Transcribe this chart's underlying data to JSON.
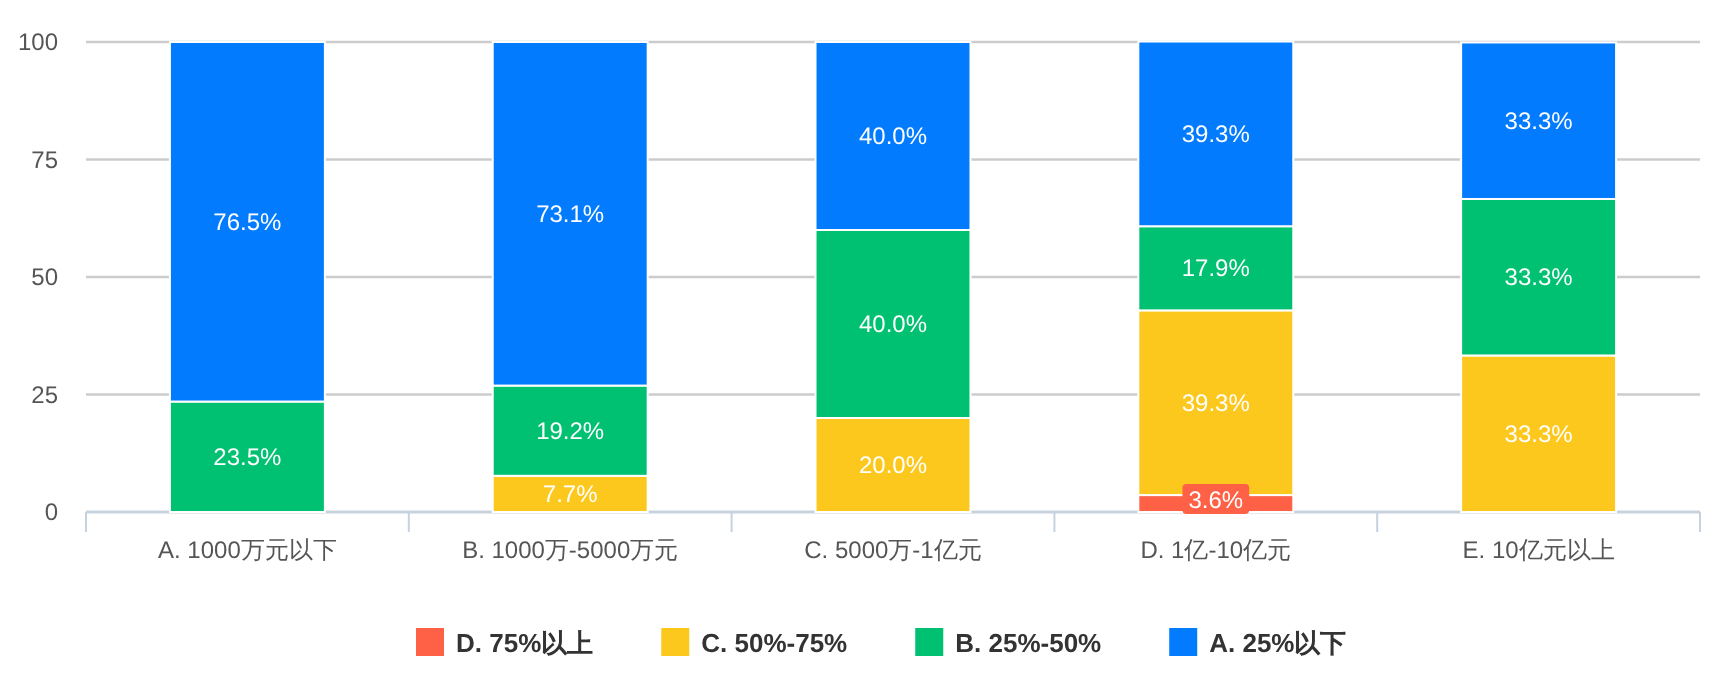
{
  "chart_data": {
    "type": "bar",
    "stacked": true,
    "categories": [
      "A. 1000万元以下",
      "B. 1000万-5000万元",
      "C. 5000万-1亿元",
      "D. 1亿-10亿元",
      "E. 10亿元以上"
    ],
    "series": [
      {
        "name": "D. 75%以上",
        "color": "#fe6146",
        "values": [
          0,
          0,
          0,
          3.6,
          0
        ],
        "value_labels": [
          null,
          null,
          null,
          "3.6%",
          null
        ]
      },
      {
        "name": "C. 50%-75%",
        "color": "#fdc81e",
        "values": [
          0,
          7.7,
          20.0,
          39.3,
          33.3
        ],
        "value_labels": [
          null,
          "7.7%",
          "20.0%",
          "39.3%",
          "33.3%"
        ]
      },
      {
        "name": "B. 25%-50%",
        "color": "#00c072",
        "values": [
          23.5,
          19.2,
          40.0,
          17.9,
          33.3
        ],
        "value_labels": [
          "23.5%",
          "19.2%",
          "40.0%",
          "17.9%",
          "33.3%"
        ]
      },
      {
        "name": "A. 25%以下",
        "color": "#037bff",
        "values": [
          76.5,
          73.1,
          40.0,
          39.3,
          33.3
        ],
        "value_labels": [
          "76.5%",
          "73.1%",
          "40.0%",
          "39.3%",
          "33.3%"
        ]
      }
    ],
    "ylim": [
      0,
      100
    ],
    "yticks": [
      0,
      25,
      50,
      75,
      100
    ],
    "grid": "y",
    "legend": "bottom"
  }
}
